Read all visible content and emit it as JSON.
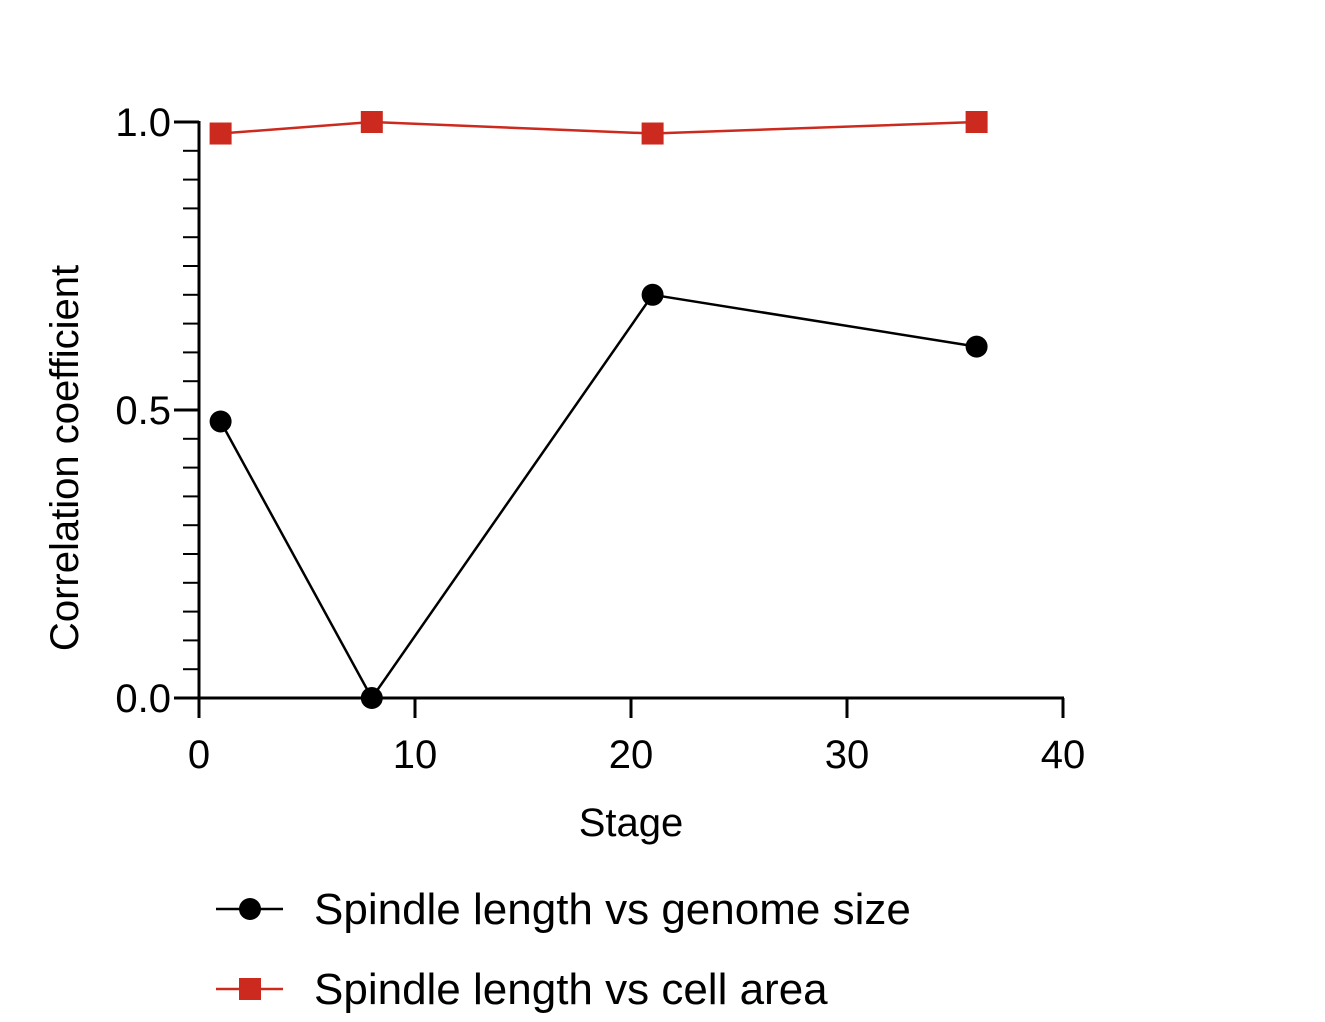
{
  "chart_data": {
    "type": "line",
    "xlabel": "Stage",
    "ylabel": "Correlation coefficient",
    "xlim": [
      0,
      40
    ],
    "ylim": [
      0,
      1.0
    ],
    "x_ticks": [
      0,
      10,
      20,
      30,
      40
    ],
    "x_tick_labels": [
      "0",
      "10",
      "20",
      "30",
      "40"
    ],
    "y_ticks": [
      0,
      0.5,
      1.0
    ],
    "y_tick_labels": [
      "0.0",
      "0.5",
      "1.0"
    ],
    "y_minor_step": 0.05,
    "grid": false,
    "legend_position": "bottom",
    "series": [
      {
        "name": "Spindle length vs genome size",
        "color": "#000000",
        "marker": "circle",
        "x": [
          1,
          8,
          21,
          36
        ],
        "y": [
          0.48,
          0.0,
          0.7,
          0.61
        ]
      },
      {
        "name": "Spindle length vs cell area",
        "color": "#cc2a1e",
        "marker": "square",
        "x": [
          1,
          8,
          21,
          36
        ],
        "y": [
          0.98,
          1.0,
          0.98,
          1.0
        ]
      }
    ]
  }
}
